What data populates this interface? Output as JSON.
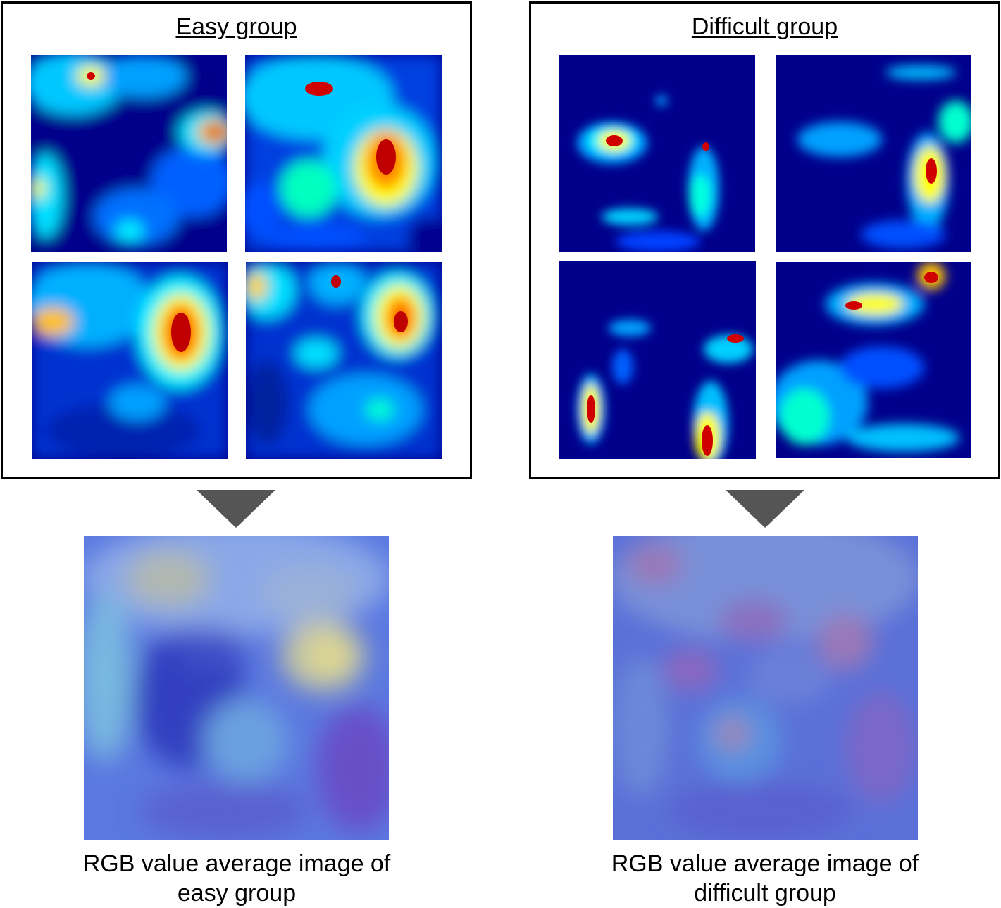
{
  "groups": [
    {
      "id": "easy",
      "title": "Easy group",
      "caption_line1": "RGB value average image of",
      "caption_line2": "easy group"
    },
    {
      "id": "difficult",
      "title": "Difficult group",
      "caption_line1": "RGB value average image of",
      "caption_line2": "difficult group"
    }
  ],
  "colors": {
    "heatmap_background": "#00008b",
    "arrow": "#555555",
    "border": "#000000"
  }
}
